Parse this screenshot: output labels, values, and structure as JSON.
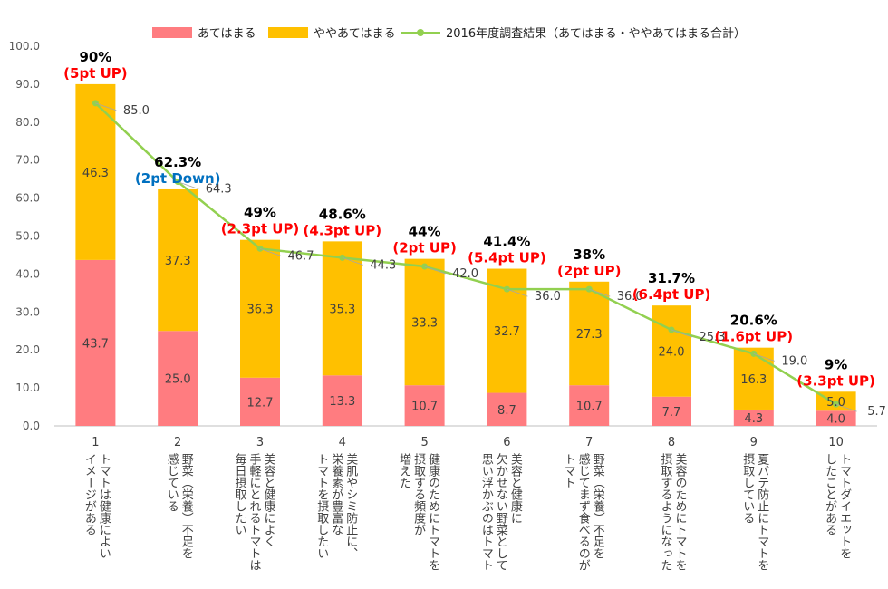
{
  "legend": {
    "series1": "あてはまる",
    "series2": "ややあてはまる",
    "series3": "2016年度調査結果（あてはまる・ややあてはまる合計）"
  },
  "colors": {
    "series1": "#FF7C80",
    "series2": "#FFC000",
    "line": "#92D050",
    "up": "#FF0000",
    "down": "#0070C0"
  },
  "chart_data": {
    "type": "bar",
    "stacked": true,
    "ylim": [
      0,
      100
    ],
    "yticks": [
      "0.0",
      "10.0",
      "20.0",
      "30.0",
      "40.0",
      "50.0",
      "60.0",
      "70.0",
      "80.0",
      "90.0",
      "100.0"
    ],
    "grid": false,
    "legend_position": "top",
    "categories": [
      {
        "num": "1",
        "lines": [
          "トマトは健康によい",
          "イメージがある"
        ]
      },
      {
        "num": "2",
        "lines": [
          "野菜（栄養）不足を",
          "感じている"
        ]
      },
      {
        "num": "3",
        "lines": [
          "美容と健康によく",
          "手軽にとれるトマトは",
          "毎日摂取したい"
        ]
      },
      {
        "num": "4",
        "lines": [
          "美肌やシミ防止に、",
          "栄養素が豊富な",
          "トマトを摂取したい"
        ]
      },
      {
        "num": "5",
        "lines": [
          "健康のためにトマトを",
          "摂取する頻度が",
          "増えた"
        ]
      },
      {
        "num": "6",
        "lines": [
          "美容と健康に",
          "欠かせない野菜として",
          "思い浮かぶのはトマト"
        ]
      },
      {
        "num": "7",
        "lines": [
          "野菜（栄養）不足を",
          "感じてまず食べるのが",
          "トマト"
        ]
      },
      {
        "num": "8",
        "lines": [
          "美容のためにトマトを",
          "摂取するようになった"
        ]
      },
      {
        "num": "9",
        "lines": [
          "夏バテ防止にトマトを",
          "摂取している"
        ]
      },
      {
        "num": "10",
        "lines": [
          "トマトダイエットを",
          "したことがある"
        ]
      }
    ],
    "series": [
      {
        "name": "あてはまる",
        "type": "bar",
        "values": [
          43.7,
          25.0,
          12.7,
          13.3,
          10.7,
          8.7,
          10.7,
          7.7,
          4.3,
          4.0
        ],
        "labels": [
          "43.7",
          "25.0",
          "12.7",
          "13.3",
          "10.7",
          "8.7",
          "10.7",
          "7.7",
          "4.3",
          "4.0"
        ]
      },
      {
        "name": "ややあてはまる",
        "type": "bar",
        "values": [
          46.3,
          37.3,
          36.3,
          35.3,
          33.3,
          32.7,
          27.3,
          24.0,
          16.3,
          5.0
        ],
        "labels": [
          "46.3",
          "37.3",
          "36.3",
          "35.3",
          "33.3",
          "32.7",
          "27.3",
          "24.0",
          "16.3",
          "5.0"
        ]
      },
      {
        "name": "2016年度調査結果（あてはまる・ややあてはまる合計）",
        "type": "line",
        "values": [
          85.0,
          64.3,
          46.7,
          44.3,
          42.0,
          36.0,
          36.0,
          25.3,
          19.0,
          5.7
        ],
        "labels": [
          "85.0",
          "64.3",
          "46.7",
          "44.3",
          "42.0",
          "36.0",
          "36.0",
          "25.3",
          "19.0",
          "5.7"
        ]
      }
    ],
    "totals": [
      "90%",
      "62.3%",
      "49%",
      "48.6%",
      "44%",
      "41.4%",
      "38%",
      "31.7%",
      "20.6%",
      "9%"
    ],
    "changes": [
      {
        "text": "(5pt UP)",
        "dir": "up"
      },
      {
        "text": "(2pt Down)",
        "dir": "down"
      },
      {
        "text": "(2.3pt UP)",
        "dir": "up"
      },
      {
        "text": "(4.3pt UP)",
        "dir": "up"
      },
      {
        "text": "(2pt UP)",
        "dir": "up"
      },
      {
        "text": "(5.4pt UP)",
        "dir": "up"
      },
      {
        "text": "(2pt UP)",
        "dir": "up"
      },
      {
        "text": "(6.4pt UP)",
        "dir": "up"
      },
      {
        "text": "(1.6pt UP)",
        "dir": "up"
      },
      {
        "text": "(3.3pt UP)",
        "dir": "up"
      }
    ]
  }
}
